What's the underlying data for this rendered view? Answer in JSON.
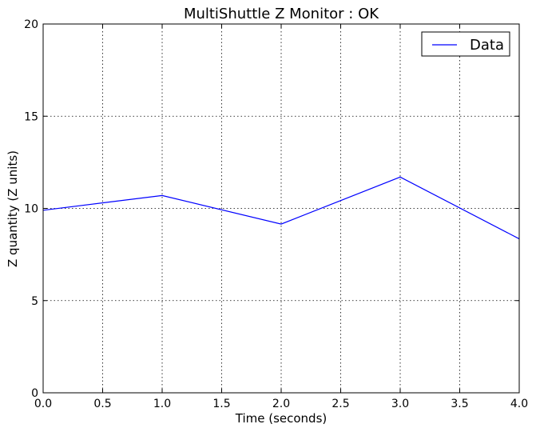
{
  "chart_data": {
    "type": "line",
    "title": "MultiShuttle Z Monitor : OK",
    "xlabel": "Time (seconds)",
    "ylabel": "Z quantity (Z units)",
    "xlim": [
      0,
      4
    ],
    "ylim": [
      0,
      20
    ],
    "xticks": [
      "0.0",
      "0.5",
      "1.0",
      "1.5",
      "2.0",
      "2.5",
      "3.0",
      "3.5",
      "4.0"
    ],
    "yticks": [
      "0",
      "5",
      "10",
      "15",
      "20"
    ],
    "grid": true,
    "legend": {
      "placement": "top-right"
    },
    "series": [
      {
        "name": "Data",
        "color": "#0000ff",
        "x": [
          0,
          1,
          2,
          3,
          4
        ],
        "y": [
          9.9,
          10.7,
          9.15,
          11.7,
          8.35
        ]
      }
    ]
  }
}
